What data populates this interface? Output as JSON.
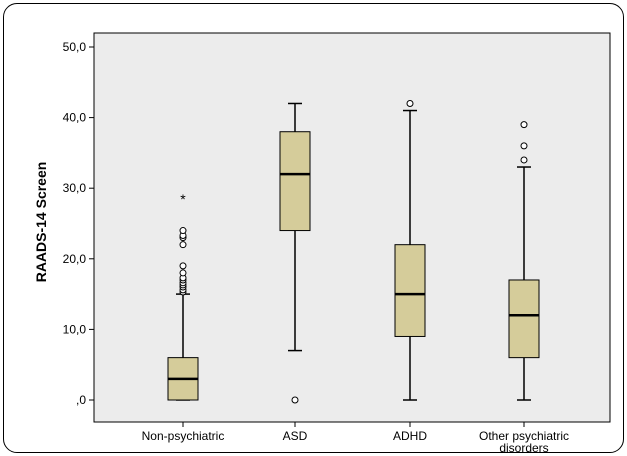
{
  "chart_data": {
    "type": "boxplot",
    "title": "",
    "xlabel": "",
    "ylabel": "RAADS-14 Screen",
    "ylim": [
      0,
      50
    ],
    "yticks": [
      0,
      10,
      20,
      30,
      40,
      50
    ],
    "ytick_labels": [
      ",0",
      "10,0",
      "20,0",
      "30,0",
      "40,0",
      "50,0"
    ],
    "grid": false,
    "categories": [
      [
        "Non-psychiatric"
      ],
      [
        "ASD"
      ],
      [
        "ADHD"
      ],
      [
        "Other psychiatric",
        "disorders"
      ]
    ],
    "boxes": [
      {
        "whisker_low": 0,
        "q1": 0,
        "median": 3,
        "q3": 6,
        "whisker_high": 15,
        "outliers": [
          15.3,
          15.6,
          16,
          16.3,
          16.6,
          17,
          17.3,
          18,
          19,
          22,
          23,
          23.3,
          24
        ],
        "extremes": [
          28.5
        ]
      },
      {
        "whisker_low": 7,
        "q1": 24,
        "median": 32,
        "q3": 38,
        "whisker_high": 42,
        "outliers": [
          0
        ],
        "extremes": []
      },
      {
        "whisker_low": 0,
        "q1": 9,
        "median": 15,
        "q3": 22,
        "whisker_high": 41,
        "outliers": [
          42
        ],
        "extremes": []
      },
      {
        "whisker_low": 0,
        "q1": 6,
        "median": 12,
        "q3": 17,
        "whisker_high": 33,
        "outliers": [
          34,
          36,
          39
        ],
        "extremes": []
      }
    ],
    "colors": {
      "box_fill": "#d5cc9a",
      "plot_bg": "#ececec",
      "line": "#000000",
      "outlier_fill": "#ffffff"
    }
  }
}
